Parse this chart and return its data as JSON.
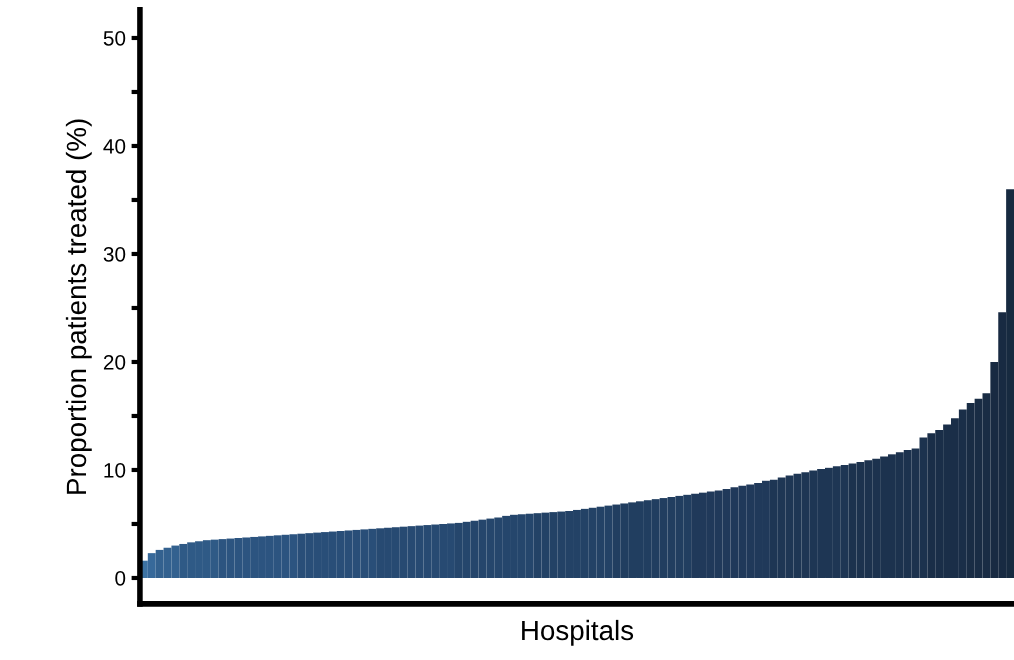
{
  "chart_data": {
    "type": "bar",
    "xlabel": "Hospitals",
    "ylabel": "Proportion patients treated (%)",
    "categories": [
      null,
      null,
      null,
      null,
      null,
      null,
      null,
      null,
      null,
      null,
      null,
      null,
      null,
      null,
      null,
      null,
      null,
      null,
      null,
      null,
      null,
      null,
      null,
      null,
      null,
      null,
      null,
      null,
      null,
      null,
      null,
      null,
      null,
      null,
      null,
      null,
      null,
      null,
      null,
      null,
      null,
      null,
      null,
      null,
      null,
      null,
      null,
      null,
      null,
      null,
      null,
      null,
      null,
      null,
      null,
      null,
      null,
      null,
      null,
      null,
      null,
      null,
      null,
      null,
      null,
      null,
      null,
      null,
      null,
      null,
      null,
      null,
      null,
      null,
      null,
      null,
      null,
      null,
      null,
      null,
      null,
      null,
      null,
      null,
      null,
      null,
      null,
      null,
      null,
      null,
      null,
      null,
      null,
      null,
      null,
      null,
      null,
      null,
      null,
      null,
      null,
      null,
      null,
      null,
      null,
      null,
      null,
      null,
      null,
      null,
      null
    ],
    "values": [
      1.6,
      2.3,
      2.6,
      2.8,
      3.0,
      3.15,
      3.3,
      3.4,
      3.5,
      3.55,
      3.6,
      3.65,
      3.7,
      3.75,
      3.8,
      3.85,
      3.9,
      3.95,
      4.0,
      4.05,
      4.1,
      4.15,
      4.2,
      4.25,
      4.3,
      4.35,
      4.4,
      4.45,
      4.5,
      4.55,
      4.6,
      4.65,
      4.7,
      4.75,
      4.8,
      4.85,
      4.9,
      4.95,
      5.0,
      5.05,
      5.1,
      5.2,
      5.3,
      5.4,
      5.5,
      5.6,
      5.75,
      5.85,
      5.9,
      5.95,
      6.0,
      6.05,
      6.1,
      6.15,
      6.2,
      6.3,
      6.4,
      6.5,
      6.6,
      6.7,
      6.8,
      6.9,
      7.0,
      7.1,
      7.2,
      7.3,
      7.4,
      7.5,
      7.6,
      7.7,
      7.8,
      7.9,
      8.0,
      8.1,
      8.25,
      8.4,
      8.55,
      8.65,
      8.8,
      9.0,
      9.1,
      9.3,
      9.5,
      9.65,
      9.8,
      9.95,
      10.1,
      10.2,
      10.35,
      10.45,
      10.6,
      10.75,
      10.9,
      11.05,
      11.25,
      11.45,
      11.65,
      11.85,
      12.0,
      13.0,
      13.4,
      13.7,
      14.2,
      14.8,
      15.6,
      16.2,
      16.6,
      17.1,
      20.0,
      24.6,
      36
    ],
    "colors": [
      "#3d73a3",
      "#37699a",
      "#33618f",
      "#33618f",
      "#33618f",
      "#2f5a86",
      "#2f5a86",
      "#2f5a86",
      "#2f5a86",
      "#2f5a86",
      "#2c5480",
      "#2c5480",
      "#2c5480",
      "#2c5480",
      "#2c5480",
      "#2c5480",
      "#2c5480",
      "#2c5480",
      "#2c5480",
      "#2c5480",
      "#294e78",
      "#294e78",
      "#294e78",
      "#294e78",
      "#294e78",
      "#294e78",
      "#294e78",
      "#294e78",
      "#294e78",
      "#294e78",
      "#274a72",
      "#274a72",
      "#274a72",
      "#274a72",
      "#274a72",
      "#274a72",
      "#274a72",
      "#274a72",
      "#274a72",
      "#274a72",
      "#25466c",
      "#25466c",
      "#25466c",
      "#25466c",
      "#25466c",
      "#25466c",
      "#25466c",
      "#25466c",
      "#25466c",
      "#25466c",
      "#234266",
      "#234266",
      "#234266",
      "#234266",
      "#234266",
      "#234266",
      "#234266",
      "#234266",
      "#234266",
      "#234266",
      "#213e60",
      "#213e60",
      "#213e60",
      "#213e60",
      "#213e60",
      "#213e60",
      "#213e60",
      "#213e60",
      "#213e60",
      "#213e60",
      "#20395a",
      "#20395a",
      "#20395a",
      "#20395a",
      "#20395a",
      "#20395a",
      "#20395a",
      "#20395a",
      "#20395a",
      "#20395a",
      "#1e3654",
      "#1e3654",
      "#1e3654",
      "#1e3654",
      "#1e3654",
      "#1e3654",
      "#1e3654",
      "#1e3654",
      "#1e3654",
      "#1e3654",
      "#1c324e",
      "#1c324e",
      "#1c324e",
      "#1c324e",
      "#1c324e",
      "#1c324e",
      "#1c324e",
      "#1c324e",
      "#1c324e",
      "#1c324e",
      "#1a2e48",
      "#1a2e48",
      "#1a2e48",
      "#1a2e48",
      "#1a2e48",
      "#192c44",
      "#192c44",
      "#192c44",
      "#182a42",
      "#182a42",
      "#172a40"
    ],
    "ylim": [
      -2.4,
      52.6
    ],
    "yticks": [
      0,
      {
        "value": 5,
        "label": null
      },
      10,
      {
        "value": 15,
        "label": null
      },
      20,
      {
        "value": 25,
        "label": null
      },
      30,
      {
        "value": 35,
        "label": null
      },
      40,
      {
        "value": 45,
        "label": null
      },
      50
    ],
    "grid": false,
    "legend": false
  }
}
